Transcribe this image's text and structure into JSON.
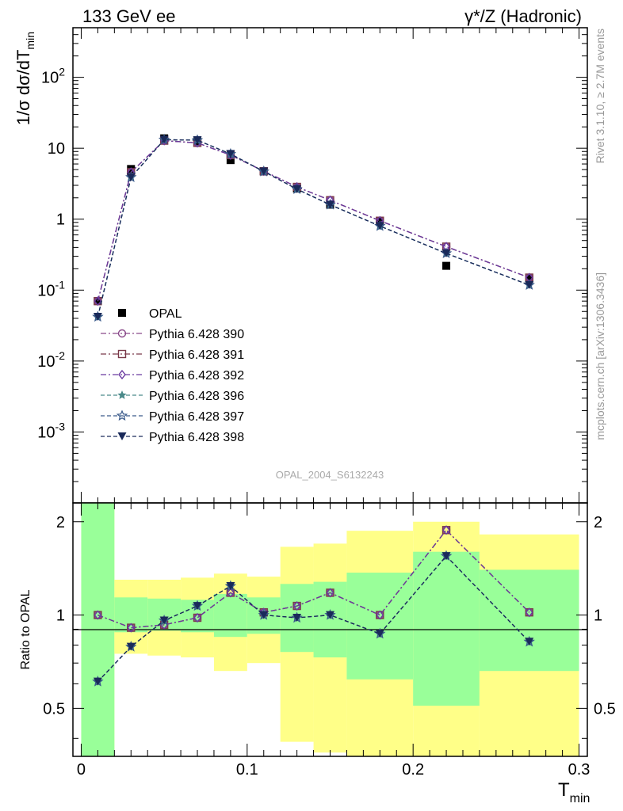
{
  "header": {
    "left": "133 GeV ee",
    "right": "γ*/Z (Hadronic)"
  },
  "side_text": {
    "rivet": "Rivet 3.1.10, ≥ 2.7M events",
    "source": "mcplots.cern.ch [arXiv:1306.3436]"
  },
  "watermark": "OPAL_2004_S6132243",
  "chart_data": [
    {
      "type": "scatter",
      "panel": "main",
      "yscale": "log",
      "ylabel": "1/σ dσ/dT_min",
      "ylim": [
        0.0001,
        500
      ],
      "xlim": [
        -0.005,
        0.305
      ],
      "ytick_labels": [
        "10^-3",
        "10^-2",
        "10^-1",
        "1",
        "10",
        "10^2"
      ],
      "legend_position": "left-center",
      "x": [
        0.01,
        0.03,
        0.05,
        0.07,
        0.09,
        0.11,
        0.13,
        0.15,
        0.18,
        0.22,
        0.27
      ],
      "series": [
        {
          "name": "OPAL",
          "marker": "filled-square",
          "color": "#000000",
          "line": false,
          "values": [
            0.07,
            5.1,
            13.8,
            12.5,
            6.8,
            4.7,
            2.7,
            1.6,
            0.93,
            0.22,
            0.145
          ]
        },
        {
          "name": "Pythia 6.428 390",
          "marker": "open-circle",
          "color": "#8a4a8a",
          "dash": "dashdot",
          "values": [
            0.07,
            4.6,
            12.8,
            11.9,
            8.0,
            4.75,
            2.85,
            1.85,
            0.95,
            0.41,
            0.15
          ]
        },
        {
          "name": "Pythia 6.428 391",
          "marker": "open-square",
          "color": "#7a3a4a",
          "dash": "dashdot",
          "values": [
            0.07,
            4.6,
            12.8,
            11.9,
            8.0,
            4.75,
            2.85,
            1.85,
            0.95,
            0.41,
            0.15
          ]
        },
        {
          "name": "Pythia 6.428 392",
          "marker": "open-diamond",
          "color": "#6a3aa0",
          "dash": "dashdot",
          "values": [
            0.07,
            4.6,
            12.8,
            11.9,
            8.0,
            4.75,
            2.85,
            1.85,
            0.95,
            0.41,
            0.15
          ]
        },
        {
          "name": "Pythia 6.428 396",
          "marker": "filled-star",
          "color": "#4a8a8a",
          "dash": "dashed",
          "values": [
            0.042,
            3.9,
            13.2,
            13.0,
            8.3,
            4.7,
            2.65,
            1.6,
            0.8,
            0.33,
            0.118
          ]
        },
        {
          "name": "Pythia 6.428 397",
          "marker": "open-star",
          "color": "#3a5a8a",
          "dash": "dashed",
          "values": [
            0.042,
            3.9,
            13.2,
            13.0,
            8.3,
            4.7,
            2.65,
            1.6,
            0.8,
            0.33,
            0.118
          ]
        },
        {
          "name": "Pythia 6.428 398",
          "marker": "filled-triangle-down",
          "color": "#1a2a5a",
          "dash": "dashed",
          "values": [
            0.042,
            3.9,
            13.2,
            13.0,
            8.3,
            4.7,
            2.65,
            1.6,
            0.8,
            0.33,
            0.118
          ]
        }
      ]
    },
    {
      "type": "line",
      "panel": "ratio",
      "xlabel": "T_min",
      "ylabel": "Ratio to OPAL",
      "ylim": [
        0.35,
        2.3
      ],
      "xlim": [
        -0.005,
        0.305
      ],
      "xtick_labels": [
        "0",
        "0.1",
        "0.2",
        "0.3"
      ],
      "ytick_labels": [
        "0.5",
        "1",
        "2"
      ],
      "x": [
        0.01,
        0.03,
        0.05,
        0.07,
        0.09,
        0.11,
        0.13,
        0.15,
        0.18,
        0.22,
        0.27
      ],
      "bins": [
        [
          0.0,
          0.02
        ],
        [
          0.02,
          0.04
        ],
        [
          0.04,
          0.06
        ],
        [
          0.06,
          0.08
        ],
        [
          0.08,
          0.1
        ],
        [
          0.1,
          0.12
        ],
        [
          0.12,
          0.14
        ],
        [
          0.14,
          0.16
        ],
        [
          0.16,
          0.2
        ],
        [
          0.2,
          0.24
        ],
        [
          0.24,
          0.3
        ]
      ],
      "band_stat": {
        "color": "#99ff99",
        "lo": [
          0.35,
          0.88,
          0.89,
          0.88,
          0.85,
          0.87,
          0.76,
          0.73,
          0.62,
          0.51,
          0.66
        ],
        "hi": [
          2.3,
          1.14,
          1.13,
          1.12,
          1.17,
          1.14,
          1.26,
          1.28,
          1.37,
          1.6,
          1.4
        ]
      },
      "band_total": {
        "color": "#ffff88",
        "lo": [
          0.35,
          0.75,
          0.74,
          0.73,
          0.66,
          0.7,
          0.39,
          0.36,
          0.35,
          0.35,
          0.35
        ],
        "hi": [
          2.3,
          1.3,
          1.3,
          1.32,
          1.36,
          1.33,
          1.66,
          1.7,
          1.87,
          2.0,
          1.82
        ]
      },
      "series": [
        {
          "name": "Pythia 6.428 390",
          "color": "#8a4a8a",
          "dash": "dashdot",
          "values": [
            1.0,
            0.91,
            0.93,
            0.98,
            1.18,
            1.02,
            1.07,
            1.18,
            1.0,
            1.88,
            1.02
          ]
        },
        {
          "name": "Pythia 6.428 396",
          "color": "#1a2a5a",
          "dash": "dashed",
          "values": [
            0.61,
            0.79,
            0.96,
            1.07,
            1.24,
            1.0,
            0.98,
            1.0,
            0.87,
            1.55,
            0.82
          ]
        }
      ]
    }
  ]
}
